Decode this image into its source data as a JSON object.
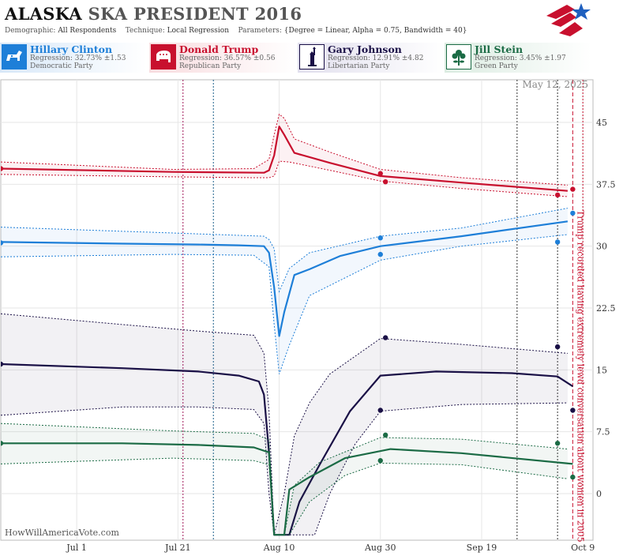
{
  "header": {
    "title_state": "ALASKA",
    "title_rest": "SKA PRESIDENT 2016",
    "demographic_label": "Demographic:",
    "demographic_value": "All Respondents",
    "technique_label": "Technique:",
    "technique_value": "Local Regression",
    "parameters_label": "Parameters:",
    "parameters_value": "{Degree = Linear, Alpha = 0.75, Bandwidth = 40}"
  },
  "candidates": [
    {
      "name": "Hillary Clinton",
      "regression": "Regression: 32.73% ±1.53",
      "party": "Democratic Party",
      "color": "#1e7fd8",
      "icon": "donkey-icon"
    },
    {
      "name": "Donald Trump",
      "regression": "Regression: 36.57% ±0.56",
      "party": "Republican Party",
      "color": "#c8102e",
      "icon": "elephant-icon"
    },
    {
      "name": "Gary Johnson",
      "regression": "Regression: 12.91% ±4.82",
      "party": "Libertarian Party",
      "color": "#1a1046",
      "icon": "liberty-statue-icon"
    },
    {
      "name": "Jill Stein",
      "regression": "Regression: 3.45% ±1.97",
      "party": "Green Party",
      "color": "#1b6b45",
      "icon": "flower-icon"
    }
  ],
  "watermark": "HowWillAmericaVote.com",
  "chart_data": {
    "type": "line",
    "date_stamp": "May 12, 2025",
    "annotation": "Trump recorded having extremely lewd conversation about women in 2005",
    "x_ticks": [
      {
        "label": "Jul 1",
        "date": "2016-07-01"
      },
      {
        "label": "Jul 21",
        "date": "2016-07-21"
      },
      {
        "label": "Aug 10",
        "date": "2016-08-10"
      },
      {
        "label": "Aug 30",
        "date": "2016-08-30"
      },
      {
        "label": "Sep 19",
        "date": "2016-09-19"
      },
      {
        "label": "Oct 9",
        "date": "2016-10-09"
      }
    ],
    "xlim": [
      "2016-06-16",
      "2016-10-11"
    ],
    "ylim": [
      -5,
      50
    ],
    "y_ticks": [
      0,
      7.5,
      15,
      22.5,
      30,
      37.5,
      45
    ],
    "grid": true,
    "event_lines": [
      {
        "date": "2016-07-22",
        "color": "#a0185a",
        "style": "dotted"
      },
      {
        "date": "2016-07-28",
        "color": "#1a5f8a",
        "style": "dotted"
      },
      {
        "date": "2016-09-26",
        "color": "#333333",
        "style": "dotted"
      },
      {
        "date": "2016-10-04",
        "color": "#333333",
        "style": "dotted"
      },
      {
        "date": "2016-10-07",
        "color": "#c8102e",
        "style": "dashed"
      },
      {
        "date": "2016-10-09",
        "color": "#c8102e",
        "style": "dotted"
      }
    ],
    "series": [
      {
        "name": "Hillary Clinton",
        "color": "#1e7fd8",
        "line": [
          [
            "2016-06-16",
            30.5
          ],
          [
            "2016-07-10",
            30.3
          ],
          [
            "2016-07-25",
            30.2
          ],
          [
            "2016-08-02",
            30.1
          ],
          [
            "2016-08-07",
            30.0
          ],
          [
            "2016-08-08",
            29.2
          ],
          [
            "2016-08-09",
            25
          ],
          [
            "2016-08-10",
            19.1
          ],
          [
            "2016-08-11",
            22
          ],
          [
            "2016-08-13",
            26.5
          ],
          [
            "2016-08-16",
            27.2
          ],
          [
            "2016-08-22",
            28.8
          ],
          [
            "2016-08-30",
            30.0
          ],
          [
            "2016-09-15",
            31.2
          ],
          [
            "2016-10-06",
            33.0
          ]
        ],
        "upper": [
          [
            "2016-06-16",
            32.3
          ],
          [
            "2016-07-20",
            31.6
          ],
          [
            "2016-08-07",
            31.2
          ],
          [
            "2016-08-08",
            30.8
          ],
          [
            "2016-08-09",
            29.7
          ],
          [
            "2016-08-10",
            24.5
          ],
          [
            "2016-08-12",
            27.3
          ],
          [
            "2016-08-16",
            29.2
          ],
          [
            "2016-08-30",
            31.2
          ],
          [
            "2016-09-15",
            32.2
          ],
          [
            "2016-10-06",
            34.6
          ]
        ],
        "lower": [
          [
            "2016-06-16",
            28.7
          ],
          [
            "2016-07-20",
            29.0
          ],
          [
            "2016-08-05",
            28.9
          ],
          [
            "2016-08-08",
            27.5
          ],
          [
            "2016-08-09",
            20.5
          ],
          [
            "2016-08-10",
            14.5
          ],
          [
            "2016-08-12",
            18
          ],
          [
            "2016-08-16",
            24
          ],
          [
            "2016-08-30",
            28.3
          ],
          [
            "2016-09-15",
            30.0
          ],
          [
            "2016-10-06",
            31.4
          ]
        ],
        "points": [
          [
            "2016-06-16",
            30.4
          ],
          [
            "2016-08-30",
            31.0
          ],
          [
            "2016-08-30",
            29.0
          ],
          [
            "2016-10-04",
            30.5
          ],
          [
            "2016-10-07",
            34.0
          ]
        ]
      },
      {
        "name": "Donald Trump",
        "color": "#c8102e",
        "line": [
          [
            "2016-06-16",
            39.4
          ],
          [
            "2016-07-20",
            39.0
          ],
          [
            "2016-08-07",
            38.9
          ],
          [
            "2016-08-08",
            39.2
          ],
          [
            "2016-08-09",
            41
          ],
          [
            "2016-08-10",
            44.5
          ],
          [
            "2016-08-11",
            43.5
          ],
          [
            "2016-08-13",
            41.3
          ],
          [
            "2016-08-20",
            40.1
          ],
          [
            "2016-08-30",
            38.5
          ],
          [
            "2016-09-15",
            37.7
          ],
          [
            "2016-10-06",
            36.7
          ]
        ],
        "upper": [
          [
            "2016-06-16",
            40.2
          ],
          [
            "2016-07-20",
            39.3
          ],
          [
            "2016-08-05",
            39.4
          ],
          [
            "2016-08-08",
            40.5
          ],
          [
            "2016-08-09",
            43.5
          ],
          [
            "2016-08-10",
            46.0
          ],
          [
            "2016-08-11",
            45.5
          ],
          [
            "2016-08-13",
            43.0
          ],
          [
            "2016-08-20",
            41.4
          ],
          [
            "2016-08-30",
            39.3
          ],
          [
            "2016-09-15",
            38.3
          ],
          [
            "2016-10-06",
            37.4
          ]
        ],
        "lower": [
          [
            "2016-06-16",
            38.7
          ],
          [
            "2016-07-20",
            38.4
          ],
          [
            "2016-08-05",
            38.3
          ],
          [
            "2016-08-08",
            38.3
          ],
          [
            "2016-08-09",
            38.5
          ],
          [
            "2016-08-10",
            40.3
          ],
          [
            "2016-08-12",
            40.2
          ],
          [
            "2016-08-20",
            39.2
          ],
          [
            "2016-08-30",
            37.9
          ],
          [
            "2016-09-15",
            37.0
          ],
          [
            "2016-10-06",
            36.0
          ]
        ],
        "points": [
          [
            "2016-06-16",
            39.4
          ],
          [
            "2016-08-30",
            38.8
          ],
          [
            "2016-08-31",
            37.8
          ],
          [
            "2016-10-04",
            36.2
          ],
          [
            "2016-10-07",
            36.9
          ]
        ]
      },
      {
        "name": "Gary Johnson",
        "color": "#1a1046",
        "line": [
          [
            "2016-06-16",
            15.7
          ],
          [
            "2016-07-10",
            15.2
          ],
          [
            "2016-07-25",
            14.8
          ],
          [
            "2016-08-02",
            14.3
          ],
          [
            "2016-08-06",
            13.6
          ],
          [
            "2016-08-07",
            12
          ],
          [
            "2016-08-08",
            5
          ],
          [
            "2016-08-09",
            -5
          ],
          [
            "2016-08-12",
            -5
          ],
          [
            "2016-08-14",
            -1
          ],
          [
            "2016-08-18",
            3.5
          ],
          [
            "2016-08-24",
            10
          ],
          [
            "2016-08-30",
            14.3
          ],
          [
            "2016-09-10",
            14.8
          ],
          [
            "2016-09-25",
            14.6
          ],
          [
            "2016-10-04",
            14.2
          ],
          [
            "2016-10-07",
            13.0
          ]
        ],
        "upper": [
          [
            "2016-06-16",
            21.8
          ],
          [
            "2016-07-10",
            20.5
          ],
          [
            "2016-07-25",
            19.7
          ],
          [
            "2016-08-05",
            19.2
          ],
          [
            "2016-08-07",
            17
          ],
          [
            "2016-08-08",
            10
          ],
          [
            "2016-08-09",
            -5
          ],
          [
            "2016-08-11",
            0
          ],
          [
            "2016-08-13",
            7
          ],
          [
            "2016-08-16",
            11
          ],
          [
            "2016-08-20",
            14.5
          ],
          [
            "2016-08-30",
            18.8
          ],
          [
            "2016-09-15",
            18.1
          ],
          [
            "2016-10-06",
            17.0
          ]
        ],
        "lower": [
          [
            "2016-06-16",
            9.5
          ],
          [
            "2016-07-10",
            10.5
          ],
          [
            "2016-07-25",
            10.5
          ],
          [
            "2016-08-05",
            10.2
          ],
          [
            "2016-08-07",
            8.5
          ],
          [
            "2016-08-08",
            0
          ],
          [
            "2016-08-09",
            -5
          ],
          [
            "2016-08-17",
            -5
          ],
          [
            "2016-08-20",
            0
          ],
          [
            "2016-08-25",
            6
          ],
          [
            "2016-08-30",
            10.0
          ],
          [
            "2016-09-15",
            10.8
          ],
          [
            "2016-10-06",
            11.0
          ]
        ],
        "points": [
          [
            "2016-06-16",
            15.7
          ],
          [
            "2016-08-30",
            10.1
          ],
          [
            "2016-08-31",
            18.9
          ],
          [
            "2016-10-04",
            17.8
          ],
          [
            "2016-10-07",
            10.1
          ]
        ]
      },
      {
        "name": "Jill Stein",
        "color": "#1b6b45",
        "line": [
          [
            "2016-06-16",
            6.1
          ],
          [
            "2016-07-10",
            6.1
          ],
          [
            "2016-07-25",
            5.9
          ],
          [
            "2016-08-05",
            5.6
          ],
          [
            "2016-08-08",
            5.0
          ],
          [
            "2016-08-09",
            -5
          ],
          [
            "2016-08-11",
            -5
          ],
          [
            "2016-08-12",
            0.5
          ],
          [
            "2016-08-16",
            2.0
          ],
          [
            "2016-08-23",
            4.3
          ],
          [
            "2016-09-01",
            5.4
          ],
          [
            "2016-09-15",
            4.9
          ],
          [
            "2016-10-07",
            3.6
          ]
        ],
        "upper": [
          [
            "2016-06-16",
            8.5
          ],
          [
            "2016-07-20",
            7.6
          ],
          [
            "2016-08-05",
            7.3
          ],
          [
            "2016-08-08",
            6.5
          ],
          [
            "2016-08-09",
            -5
          ],
          [
            "2016-08-11",
            -5
          ],
          [
            "2016-08-13",
            1
          ],
          [
            "2016-08-18",
            3.8
          ],
          [
            "2016-08-30",
            6.8
          ],
          [
            "2016-09-15",
            6.6
          ],
          [
            "2016-10-06",
            5.4
          ]
        ],
        "lower": [
          [
            "2016-06-16",
            3.6
          ],
          [
            "2016-07-20",
            4.3
          ],
          [
            "2016-08-05",
            4.0
          ],
          [
            "2016-08-08",
            3.5
          ],
          [
            "2016-08-09",
            -5
          ],
          [
            "2016-08-12",
            -5
          ],
          [
            "2016-08-16",
            -1
          ],
          [
            "2016-08-23",
            2.2
          ],
          [
            "2016-08-30",
            3.7
          ],
          [
            "2016-09-15",
            3.5
          ],
          [
            "2016-10-06",
            1.8
          ]
        ],
        "points": [
          [
            "2016-06-16",
            6.1
          ],
          [
            "2016-08-30",
            4.0
          ],
          [
            "2016-08-31",
            7.1
          ],
          [
            "2016-10-04",
            6.1
          ],
          [
            "2016-10-07",
            2.0
          ]
        ]
      }
    ]
  }
}
